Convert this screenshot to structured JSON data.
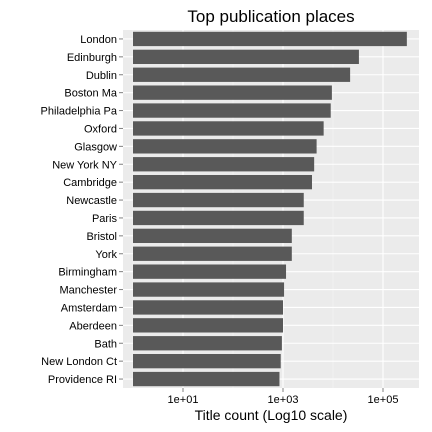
{
  "chart_data": {
    "type": "bar",
    "orientation": "horizontal",
    "title": "Top publication places",
    "xlabel": "Title count (Log10 scale)",
    "ylabel": "",
    "x_scale": "log10",
    "xlim": [
      1,
      800000
    ],
    "x_ticks": [
      {
        "value": 10,
        "label": "1e+01"
      },
      {
        "value": 1000,
        "label": "1e+03"
      },
      {
        "value": 100000,
        "label": "1e+05"
      }
    ],
    "grid": true,
    "legend": "none",
    "categories": [
      "London",
      "Edinburgh",
      "Dublin",
      "Boston Ma",
      "Philadelphia Pa",
      "Oxford",
      "Glasgow",
      "New York NY",
      "Cambridge",
      "Newcastle",
      "Paris",
      "Bristol",
      "York",
      "Birmingham",
      "Manchester",
      "Amsterdam",
      "Aberdeen",
      "Bath",
      "New London Ct",
      "Providence RI"
    ],
    "values": [
      300000,
      33000,
      22000,
      9500,
      9000,
      6500,
      4700,
      4200,
      3800,
      2600,
      2600,
      1500,
      1500,
      1150,
      1050,
      1000,
      1000,
      950,
      900,
      850
    ],
    "colors": {
      "bar": "#595959",
      "panel": "#ebebeb",
      "grid_major": "#ffffff",
      "grid_minor": "#f5f5f5",
      "tick": "#7f7f7f"
    }
  }
}
